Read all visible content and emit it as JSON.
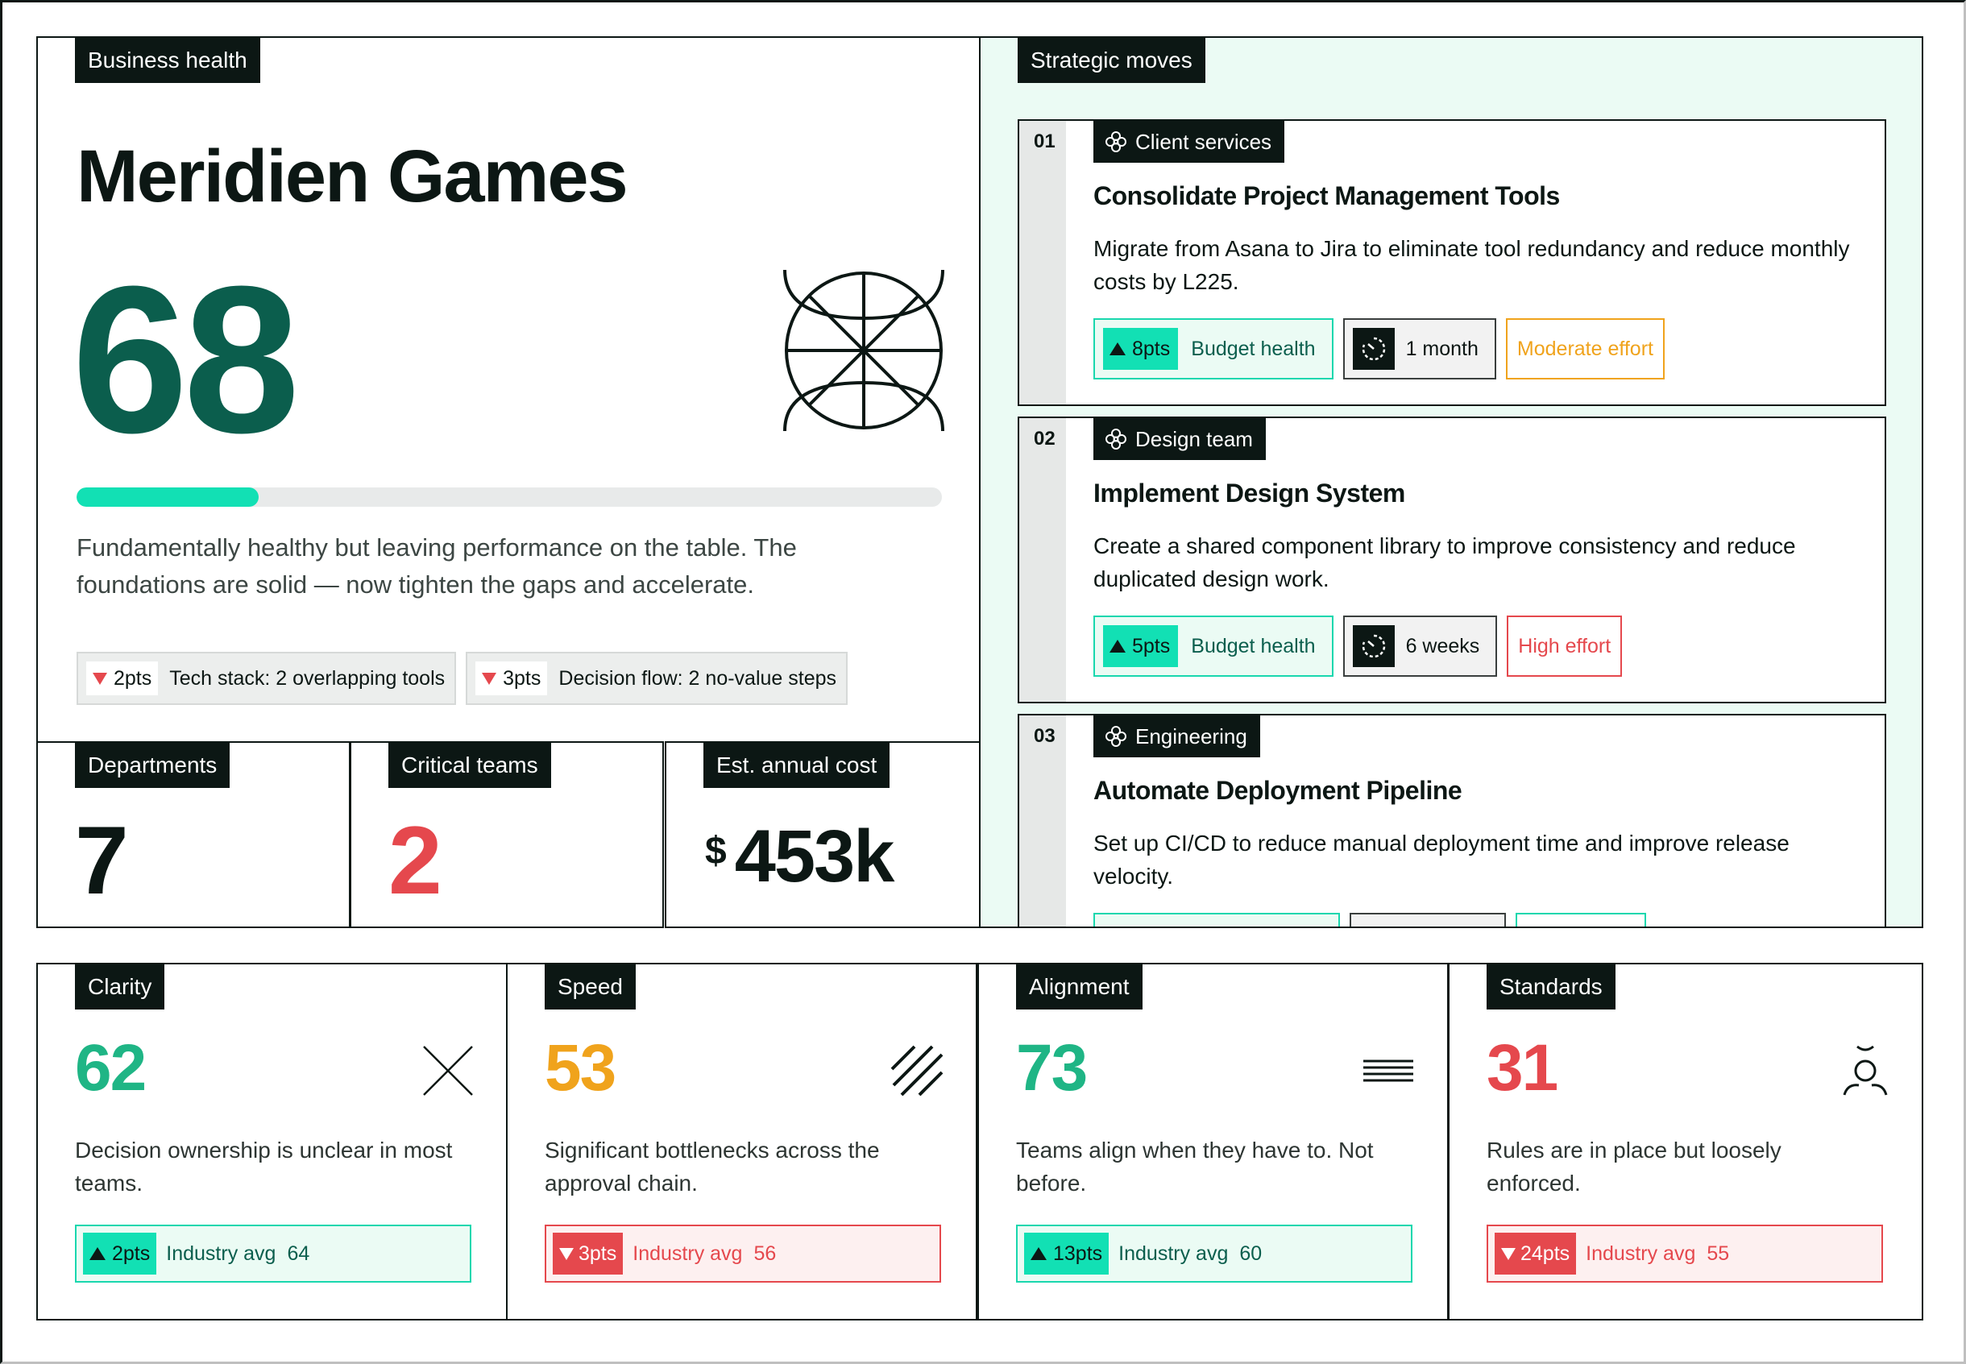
{
  "health": {
    "tag": "Business health",
    "company": "Meridien Games",
    "score": "68",
    "progress": 0.21,
    "summary": "Fundamentally healthy but leaving performance on the table. The foundations are solid — now tighten the gaps and accelerate.",
    "deductions": [
      {
        "pts": "2pts",
        "label": "Tech stack: 2 overlapping tools"
      },
      {
        "pts": "3pts",
        "label": "Decision flow: 2 no-value steps"
      }
    ]
  },
  "stats": {
    "departments": {
      "label": "Departments",
      "value": "7"
    },
    "critical": {
      "label": "Critical teams",
      "value": "2"
    },
    "cost": {
      "label": "Est. annual cost",
      "currency": "$",
      "value": "453k"
    }
  },
  "moves": {
    "tag": "Strategic moves",
    "items": [
      {
        "index": "01",
        "dept": "Client services",
        "title": "Consolidate Project Management Tools",
        "desc": "Migrate from Asana to Jira to eliminate tool redundancy and reduce monthly costs by L225.",
        "pts": "8pts",
        "impact": "Budget health",
        "duration": "1 month",
        "effort": "Moderate effort",
        "effort_color": "#f0a31c"
      },
      {
        "index": "02",
        "dept": "Design team",
        "title": "Implement Design System",
        "desc": "Create a shared component library to improve consistency and reduce duplicated design work.",
        "pts": "5pts",
        "impact": "Budget health",
        "duration": "6 weeks",
        "effort": "High effort",
        "effort_color": "#e5484d"
      },
      {
        "index": "03",
        "dept": "Engineering",
        "title": "Automate Deployment Pipeline",
        "desc": "Set up CI/CD to reduce manual deployment time and improve release velocity."
      }
    ]
  },
  "metrics": {
    "clarity": {
      "label": "Clarity",
      "score": "62",
      "color": "#1fb585",
      "icon": "cross-icon",
      "text": "Decision ownership is unclear in most teams.",
      "pts": "2pts",
      "avg_label": "Industry avg",
      "avg": "64"
    },
    "speed": {
      "label": "Speed",
      "score": "53",
      "color": "#f0a31c",
      "icon": "slashes-icon",
      "text": "Significant bottlenecks across the approval chain.",
      "pts": "3pts",
      "avg_label": "Industry avg",
      "avg": "56"
    },
    "alignment": {
      "label": "Alignment",
      "score": "73",
      "color": "#1fb585",
      "icon": "lines-icon",
      "text": "Teams align when they have to. Not before.",
      "pts": "13pts",
      "avg_label": "Industry avg",
      "avg": "60"
    },
    "standards": {
      "label": "Standards",
      "score": "31",
      "color": "#e5484d",
      "icon": "person-icon",
      "text": "Rules are in place but loosely enforced.",
      "pts": "24pts",
      "avg_label": "Industry avg",
      "avg": "55"
    }
  }
}
